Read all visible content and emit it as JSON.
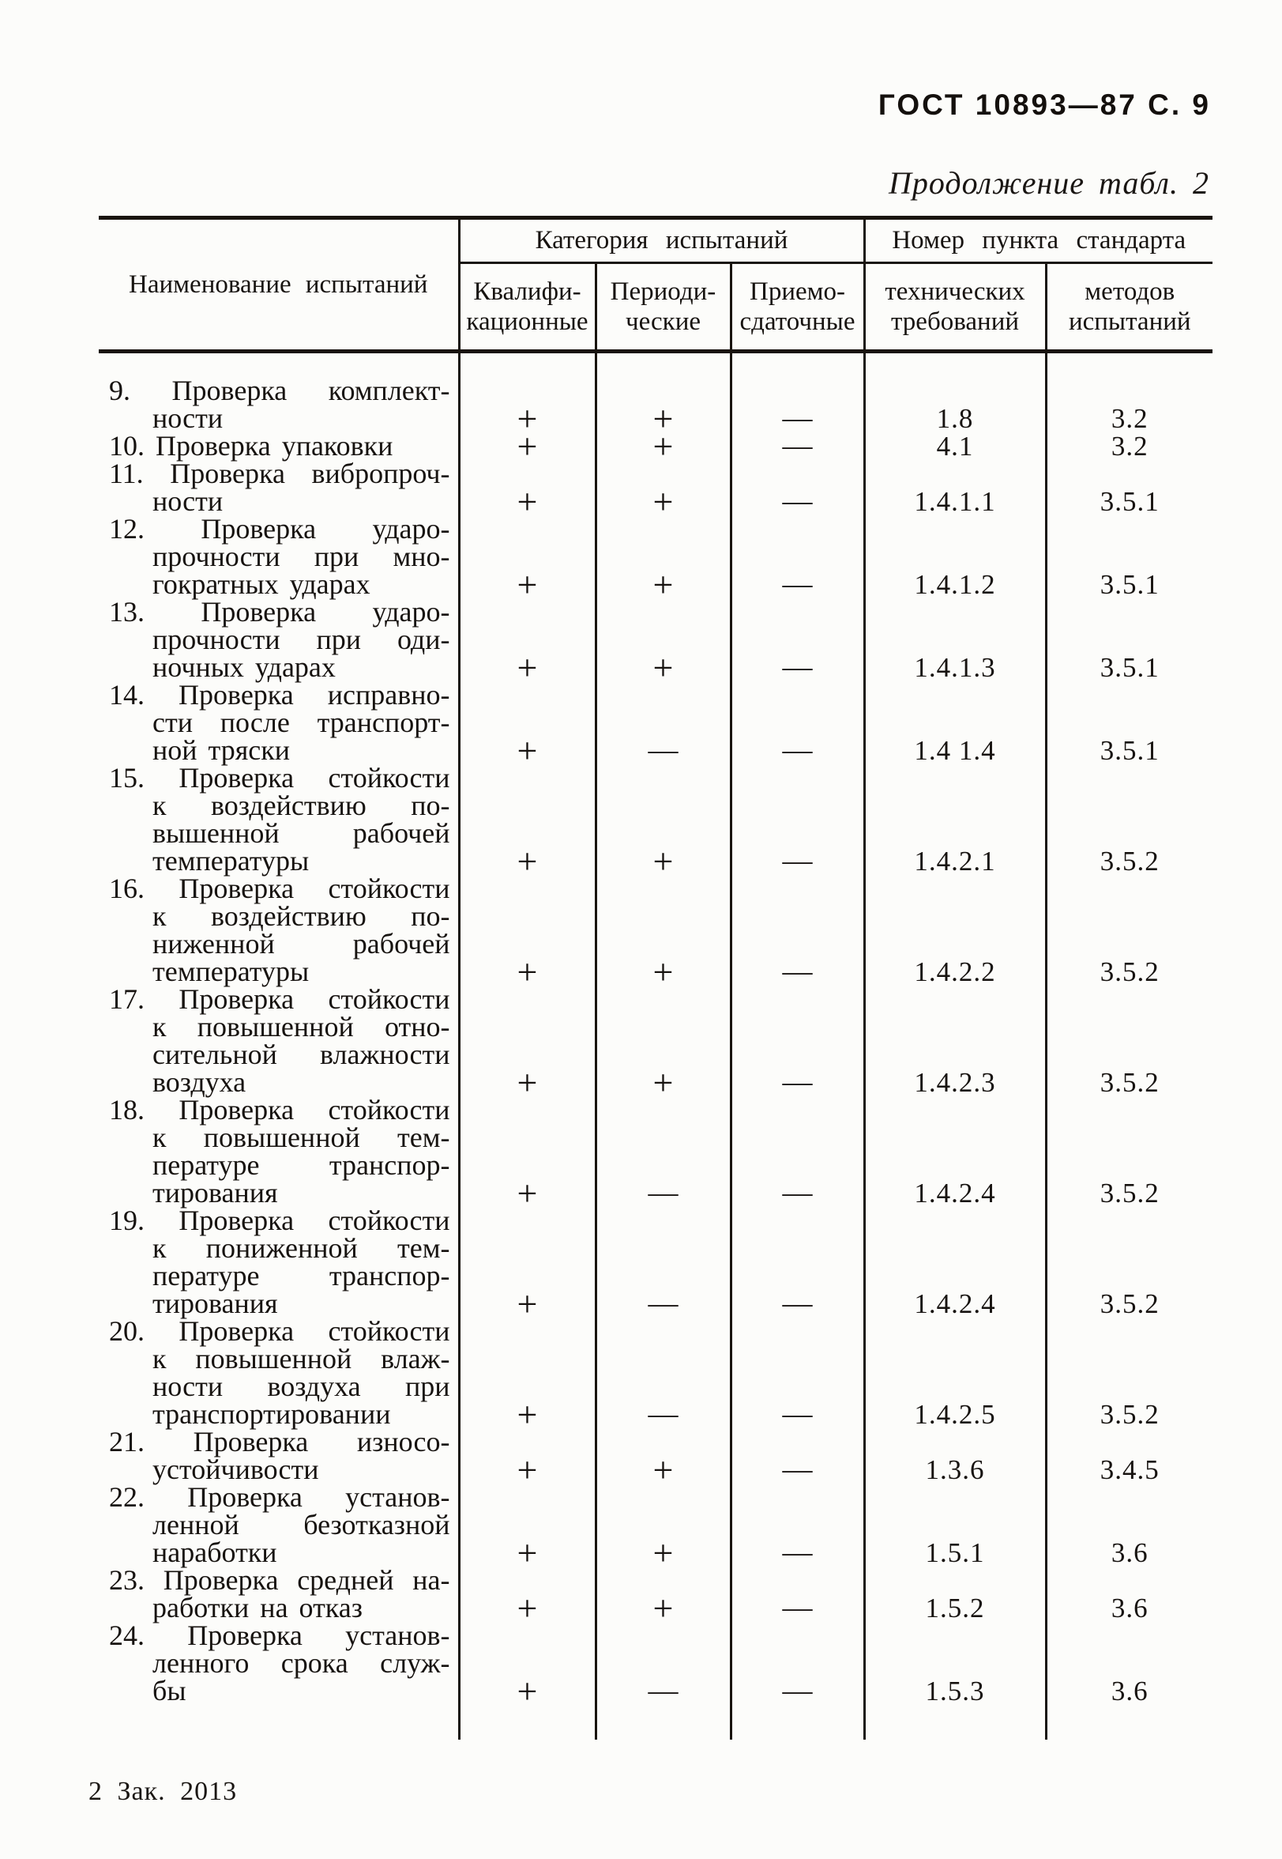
{
  "page": {
    "doc_ref": "ГОСТ 10893—87 С. 9",
    "table_caption": "Продолжение табл. 2",
    "footer_note": "2 Зак. 2013"
  },
  "table": {
    "columns": {
      "name_header": "Наименование испытаний",
      "group_category": "Категория испытаний",
      "group_clause": "Номер пункта стандарта",
      "sub_qualification": "Квалифи-\nкационные",
      "sub_periodic": "Периоди-\nческие",
      "sub_acceptance": "Приемо-\nсдаточные",
      "sub_tech_requirements": "технических\nтребований",
      "sub_test_methods": "методов\nиспытаний"
    },
    "rows": [
      {
        "name_lines": [
          "9. Проверка комплект-",
          "ности"
        ],
        "qualification": "+",
        "periodic": "+",
        "acceptance": "—",
        "tech_requirements": "1.8",
        "test_methods": "3.2"
      },
      {
        "name_lines": [
          "10. Проверка упаковки"
        ],
        "qualification": "+",
        "periodic": "+",
        "acceptance": "—",
        "tech_requirements": "4.1",
        "test_methods": "3.2"
      },
      {
        "name_lines": [
          "11. Проверка вибропроч-",
          "ности"
        ],
        "qualification": "+",
        "periodic": "+",
        "acceptance": "—",
        "tech_requirements": "1.4.1.1",
        "test_methods": "3.5.1"
      },
      {
        "name_lines": [
          "12. Проверка ударо-",
          "прочности при мно-",
          "гократных ударах"
        ],
        "qualification": "+",
        "periodic": "+",
        "acceptance": "—",
        "tech_requirements": "1.4.1.2",
        "test_methods": "3.5.1"
      },
      {
        "name_lines": [
          "13. Проверка ударо-",
          "прочности при оди-",
          "ночных ударах"
        ],
        "qualification": "+",
        "periodic": "+",
        "acceptance": "—",
        "tech_requirements": "1.4.1.3",
        "test_methods": "3.5.1"
      },
      {
        "name_lines": [
          "14. Проверка исправно-",
          "сти после транспорт-",
          "ной тряски"
        ],
        "qualification": "+",
        "periodic": "—",
        "acceptance": "—",
        "tech_requirements": "1.4 1.4",
        "test_methods": "3.5.1"
      },
      {
        "name_lines": [
          "15. Проверка стойкости",
          "к воздействию по-",
          "вышенной рабочей",
          "температуры"
        ],
        "qualification": "+",
        "periodic": "+",
        "acceptance": "—",
        "tech_requirements": "1.4.2.1",
        "test_methods": "3.5.2"
      },
      {
        "name_lines": [
          "16. Проверка стойкости",
          "к воздействию по-",
          "ниженной рабочей",
          "температуры"
        ],
        "qualification": "+",
        "periodic": "+",
        "acceptance": "—",
        "tech_requirements": "1.4.2.2",
        "test_methods": "3.5.2"
      },
      {
        "name_lines": [
          "17. Проверка стойкости",
          "к повышенной отно-",
          "сительной влажности",
          "воздуха"
        ],
        "qualification": "+",
        "periodic": "+",
        "acceptance": "—",
        "tech_requirements": "1.4.2.3",
        "test_methods": "3.5.2"
      },
      {
        "name_lines": [
          "18. Проверка стойкости",
          "к повышенной тем-",
          "пературе транспор-",
          "тирования"
        ],
        "qualification": "+",
        "periodic": "—",
        "acceptance": "—",
        "tech_requirements": "1.4.2.4",
        "test_methods": "3.5.2"
      },
      {
        "name_lines": [
          "19. Проверка стойкости",
          "к пониженной тем-",
          "пературе транспор-",
          "тирования"
        ],
        "qualification": "+",
        "periodic": "—",
        "acceptance": "—",
        "tech_requirements": "1.4.2.4",
        "test_methods": "3.5.2"
      },
      {
        "name_lines": [
          "20. Проверка стойкости",
          "к повышенной влаж-",
          "ности воздуха при",
          "транспортировании"
        ],
        "qualification": "+",
        "periodic": "—",
        "acceptance": "—",
        "tech_requirements": "1.4.2.5",
        "test_methods": "3.5.2"
      },
      {
        "name_lines": [
          "21. Проверка износо-",
          "устойчивости"
        ],
        "qualification": "+",
        "periodic": "+",
        "acceptance": "—",
        "tech_requirements": "1.3.6",
        "test_methods": "3.4.5"
      },
      {
        "name_lines": [
          "22. Проверка установ-",
          "ленной безотказной",
          "наработки"
        ],
        "qualification": "+",
        "periodic": "+",
        "acceptance": "—",
        "tech_requirements": "1.5.1",
        "test_methods": "3.6"
      },
      {
        "name_lines": [
          "23. Проверка средней на-",
          "работки на отказ"
        ],
        "qualification": "+",
        "periodic": "+",
        "acceptance": "—",
        "tech_requirements": "1.5.2",
        "test_methods": "3.6"
      },
      {
        "name_lines": [
          "24. Проверка установ-",
          "ленного срока служ-",
          "бы"
        ],
        "qualification": "+",
        "periodic": "—",
        "acceptance": "—",
        "tech_requirements": "1.5.3",
        "test_methods": "3.6"
      }
    ]
  }
}
